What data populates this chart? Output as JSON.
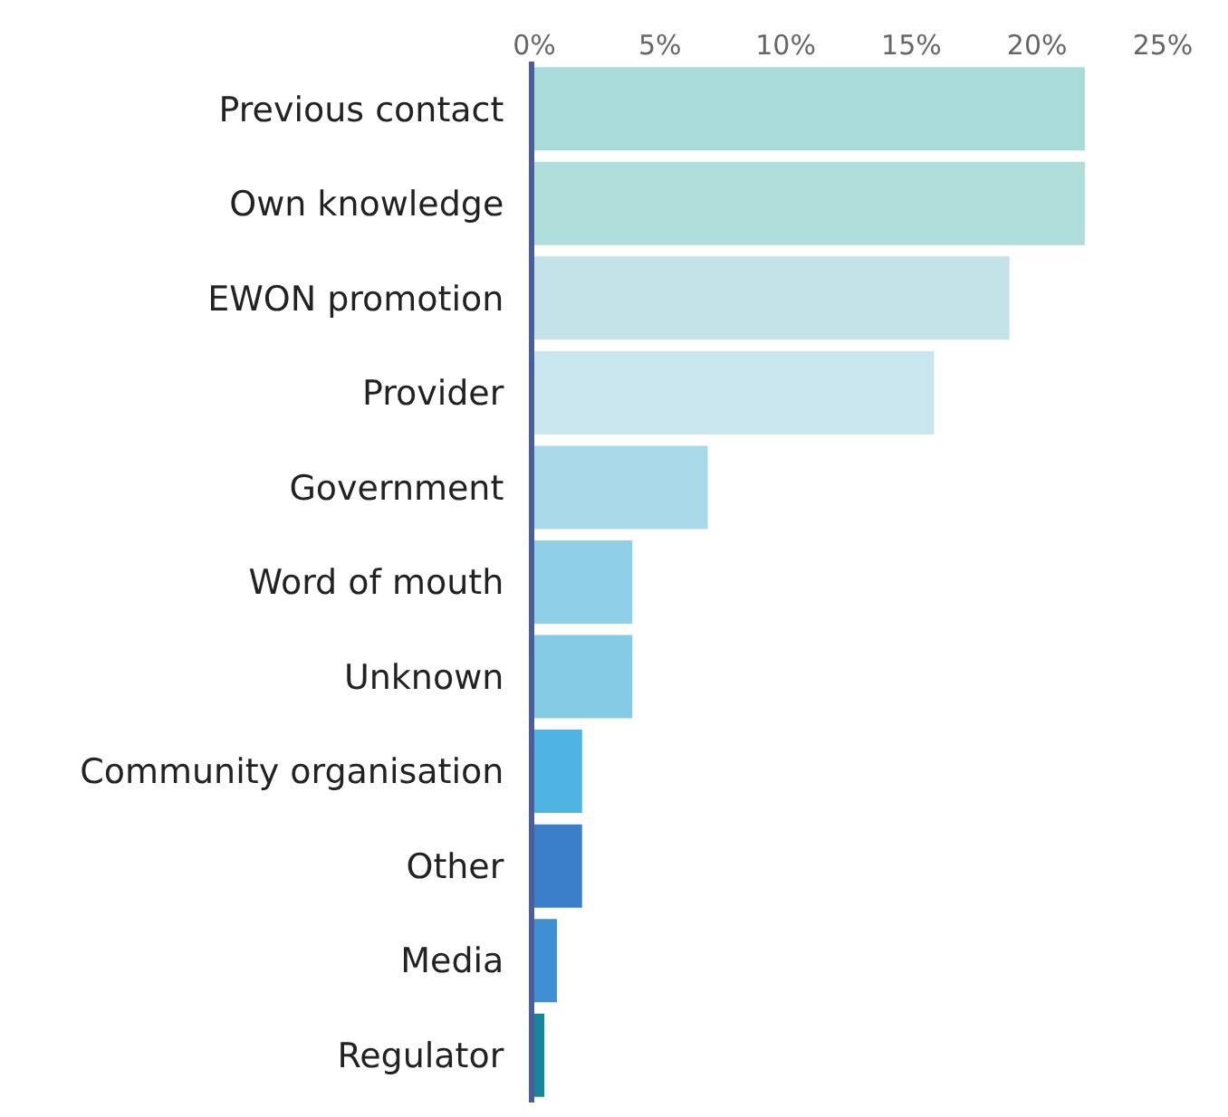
{
  "chart_data": {
    "type": "bar",
    "orientation": "horizontal",
    "categories": [
      "Previous contact",
      "Own knowledge",
      "EWON promotion",
      "Provider",
      "Government",
      "Word of mouth",
      "Unknown",
      "Community organisation",
      "Other",
      "Media",
      "Regulator"
    ],
    "values": [
      21.9,
      21.9,
      18.9,
      15.9,
      6.9,
      3.9,
      3.9,
      1.9,
      1.9,
      0.9,
      0.4
    ],
    "colors": [
      "#a9dcd8",
      "#b0dedb",
      "#c3e3e8",
      "#c9e6ee",
      "#a9d9e8",
      "#90d0e6",
      "#86cbe6",
      "#4fb3e3",
      "#3b7fcb",
      "#3f8fd2",
      "#18869a"
    ],
    "xlim": [
      0,
      25
    ],
    "xticks": [
      {
        "value": 0,
        "label": "0%"
      },
      {
        "value": 5,
        "label": "5%"
      },
      {
        "value": 10,
        "label": "10%"
      },
      {
        "value": 15,
        "label": "15%"
      },
      {
        "value": 20,
        "label": "20%"
      },
      {
        "value": 25,
        "label": "25%"
      }
    ],
    "legend": false
  }
}
